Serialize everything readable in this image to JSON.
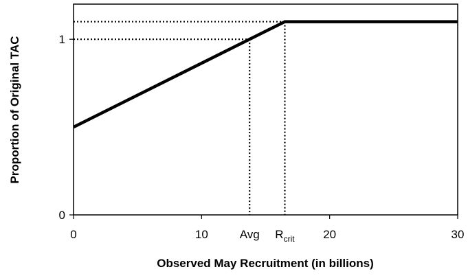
{
  "chart_data": {
    "type": "line",
    "x_label": "Observed May Recruitment (in billions)",
    "y_label": "Proportion of Original  TAC",
    "x": [
      0,
      16.5,
      30
    ],
    "series": [
      {
        "color": "#000000",
        "values": [
          0.5,
          1.1,
          1.1
        ]
      }
    ],
    "reference_points": [
      {
        "label": "Avg",
        "x": 13.75,
        "y": 1
      },
      {
        "label": "R",
        "label_sub": "crit",
        "x": 16.5,
        "y": 1.1
      }
    ],
    "xlim": [
      0,
      30
    ],
    "xticks": [
      0,
      10,
      20,
      30
    ],
    "ylim": [
      0,
      1.2
    ],
    "yticks": [
      0,
      1
    ],
    "grid": false
  }
}
